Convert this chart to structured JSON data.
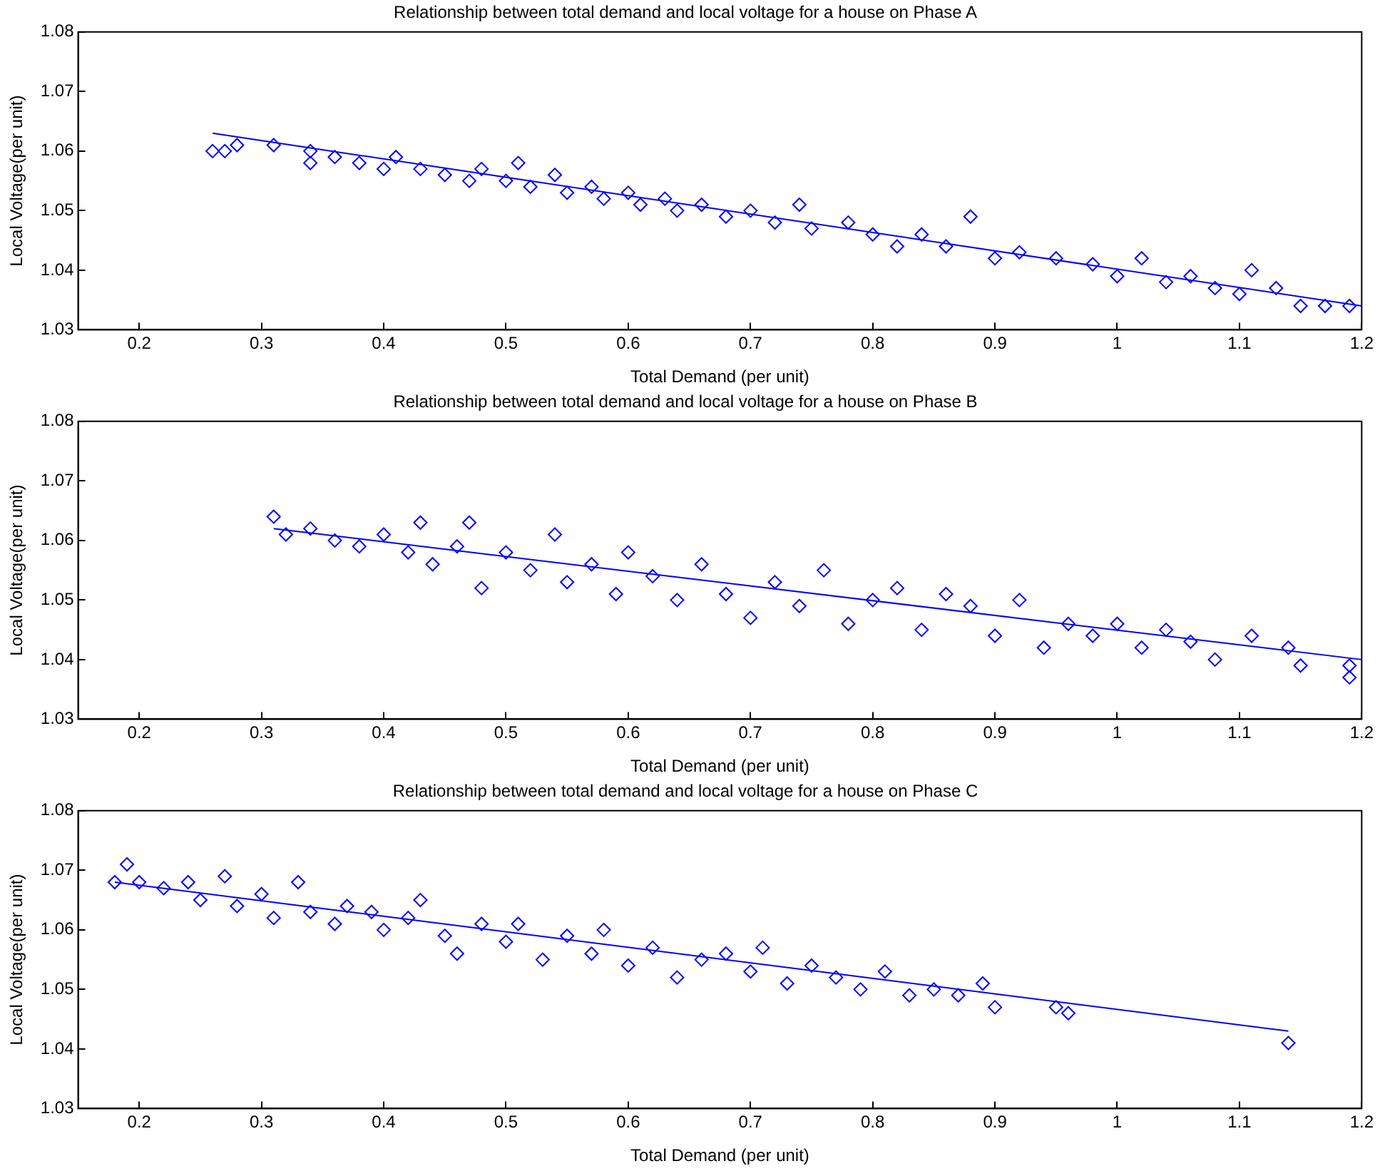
{
  "chart_data": [
    {
      "type": "scatter",
      "title": "Relationship between total demand and local voltage for a house on Phase A",
      "xlabel": "Total Demand (per unit)",
      "ylabel": "Local Voltage(per unit)",
      "xlim": [
        0.15,
        1.2
      ],
      "ylim": [
        1.03,
        1.08
      ],
      "xticks": [
        0.2,
        0.3,
        0.4,
        0.5,
        0.6,
        0.7,
        0.8,
        0.9,
        1,
        1.1,
        1.2
      ],
      "yticks": [
        1.03,
        1.04,
        1.05,
        1.06,
        1.07,
        1.08
      ],
      "grid": false,
      "legend": false,
      "series": [
        {
          "marker": "diamond",
          "color": "#0000ff",
          "x": [
            0.26,
            0.27,
            0.28,
            0.31,
            0.34,
            0.34,
            0.36,
            0.38,
            0.4,
            0.41,
            0.43,
            0.45,
            0.47,
            0.48,
            0.5,
            0.51,
            0.52,
            0.54,
            0.55,
            0.57,
            0.58,
            0.6,
            0.61,
            0.63,
            0.64,
            0.66,
            0.68,
            0.7,
            0.72,
            0.74,
            0.75,
            0.78,
            0.8,
            0.82,
            0.84,
            0.86,
            0.88,
            0.9,
            0.92,
            0.95,
            0.98,
            1.0,
            1.02,
            1.04,
            1.06,
            1.08,
            1.1,
            1.11,
            1.13,
            1.15,
            1.17,
            1.19
          ],
          "values": [
            1.06,
            1.06,
            1.061,
            1.061,
            1.06,
            1.058,
            1.059,
            1.058,
            1.057,
            1.059,
            1.057,
            1.056,
            1.055,
            1.057,
            1.055,
            1.058,
            1.054,
            1.056,
            1.053,
            1.054,
            1.052,
            1.053,
            1.051,
            1.052,
            1.05,
            1.051,
            1.049,
            1.05,
            1.048,
            1.051,
            1.047,
            1.048,
            1.046,
            1.044,
            1.046,
            1.044,
            1.049,
            1.042,
            1.043,
            1.042,
            1.041,
            1.039,
            1.042,
            1.038,
            1.039,
            1.037,
            1.036,
            1.04,
            1.037,
            1.034,
            1.034,
            1.034
          ]
        },
        {
          "type": "line",
          "marker": "none",
          "color": "#0000ff",
          "x": [
            0.26,
            1.2
          ],
          "values": [
            1.063,
            1.034
          ]
        }
      ]
    },
    {
      "type": "scatter",
      "title": "Relationship between total demand and local voltage for a house on Phase B",
      "xlabel": "Total Demand (per unit)",
      "ylabel": "Local Voltage(per unit)",
      "xlim": [
        0.15,
        1.2
      ],
      "ylim": [
        1.03,
        1.08
      ],
      "xticks": [
        0.2,
        0.3,
        0.4,
        0.5,
        0.6,
        0.7,
        0.8,
        0.9,
        1,
        1.1,
        1.2
      ],
      "yticks": [
        1.03,
        1.04,
        1.05,
        1.06,
        1.07,
        1.08
      ],
      "grid": false,
      "legend": false,
      "series": [
        {
          "marker": "diamond",
          "color": "#0000ff",
          "x": [
            0.31,
            0.32,
            0.34,
            0.36,
            0.38,
            0.4,
            0.42,
            0.43,
            0.44,
            0.46,
            0.47,
            0.48,
            0.5,
            0.52,
            0.54,
            0.55,
            0.57,
            0.59,
            0.6,
            0.62,
            0.64,
            0.66,
            0.68,
            0.7,
            0.72,
            0.74,
            0.76,
            0.78,
            0.8,
            0.82,
            0.84,
            0.86,
            0.88,
            0.9,
            0.92,
            0.94,
            0.96,
            0.98,
            1.0,
            1.02,
            1.04,
            1.06,
            1.08,
            1.11,
            1.14,
            1.15,
            1.19,
            1.19
          ],
          "values": [
            1.064,
            1.061,
            1.062,
            1.06,
            1.059,
            1.061,
            1.058,
            1.063,
            1.056,
            1.059,
            1.063,
            1.052,
            1.058,
            1.055,
            1.061,
            1.053,
            1.056,
            1.051,
            1.058,
            1.054,
            1.05,
            1.056,
            1.051,
            1.047,
            1.053,
            1.049,
            1.055,
            1.046,
            1.05,
            1.052,
            1.045,
            1.051,
            1.049,
            1.044,
            1.05,
            1.042,
            1.046,
            1.044,
            1.046,
            1.042,
            1.045,
            1.043,
            1.04,
            1.044,
            1.042,
            1.039,
            1.039,
            1.037
          ]
        },
        {
          "type": "line",
          "marker": "none",
          "color": "#0000ff",
          "x": [
            0.31,
            1.2
          ],
          "values": [
            1.062,
            1.04
          ]
        }
      ]
    },
    {
      "type": "scatter",
      "title": "Relationship between total demand and local voltage for a house on Phase C",
      "xlabel": "Total Demand (per unit)",
      "ylabel": "Local Voltage(per unit)",
      "xlim": [
        0.15,
        1.2
      ],
      "ylim": [
        1.03,
        1.08
      ],
      "xticks": [
        0.2,
        0.3,
        0.4,
        0.5,
        0.6,
        0.7,
        0.8,
        0.9,
        1,
        1.1,
        1.2
      ],
      "yticks": [
        1.03,
        1.04,
        1.05,
        1.06,
        1.07,
        1.08
      ],
      "grid": false,
      "legend": false,
      "series": [
        {
          "marker": "diamond",
          "color": "#0000ff",
          "x": [
            0.18,
            0.19,
            0.2,
            0.22,
            0.24,
            0.25,
            0.27,
            0.28,
            0.3,
            0.31,
            0.33,
            0.34,
            0.36,
            0.37,
            0.39,
            0.4,
            0.42,
            0.43,
            0.45,
            0.46,
            0.48,
            0.5,
            0.51,
            0.53,
            0.55,
            0.57,
            0.58,
            0.6,
            0.62,
            0.64,
            0.66,
            0.68,
            0.7,
            0.71,
            0.73,
            0.75,
            0.77,
            0.79,
            0.81,
            0.83,
            0.85,
            0.87,
            0.89,
            0.9,
            0.95,
            0.96,
            1.14
          ],
          "values": [
            1.068,
            1.071,
            1.068,
            1.067,
            1.068,
            1.065,
            1.069,
            1.064,
            1.066,
            1.062,
            1.068,
            1.063,
            1.061,
            1.064,
            1.063,
            1.06,
            1.062,
            1.065,
            1.059,
            1.056,
            1.061,
            1.058,
            1.061,
            1.055,
            1.059,
            1.056,
            1.06,
            1.054,
            1.057,
            1.052,
            1.055,
            1.056,
            1.053,
            1.057,
            1.051,
            1.054,
            1.052,
            1.05,
            1.053,
            1.049,
            1.05,
            1.049,
            1.051,
            1.047,
            1.047,
            1.046,
            1.041
          ]
        },
        {
          "type": "line",
          "marker": "none",
          "color": "#0000ff",
          "x": [
            0.18,
            1.14
          ],
          "values": [
            1.068,
            1.043
          ]
        }
      ]
    }
  ]
}
